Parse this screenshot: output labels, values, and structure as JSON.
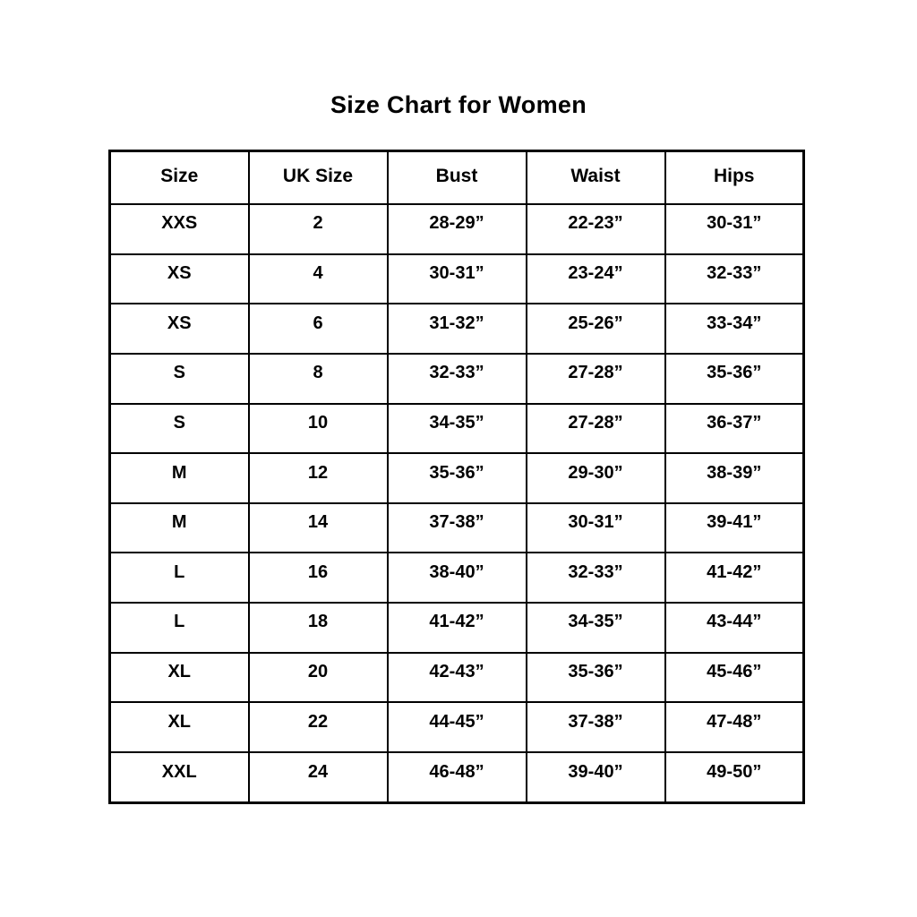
{
  "title": "Size Chart for Women",
  "colors": {
    "background": "#ffffff",
    "border": "#000000",
    "text": "#000000"
  },
  "table": {
    "headers": [
      "Size",
      "UK Size",
      "Bust",
      "Waist",
      "Hips"
    ],
    "rows": [
      [
        "XXS",
        "2",
        "28-29”",
        "22-23”",
        "30-31”"
      ],
      [
        "XS",
        "4",
        "30-31”",
        "23-24”",
        "32-33”"
      ],
      [
        "XS",
        "6",
        "31-32”",
        "25-26”",
        "33-34”"
      ],
      [
        "S",
        "8",
        "32-33”",
        "27-28”",
        "35-36”"
      ],
      [
        "S",
        "10",
        "34-35”",
        "27-28”",
        "36-37”"
      ],
      [
        "M",
        "12",
        "35-36”",
        "29-30”",
        "38-39”"
      ],
      [
        "M",
        "14",
        "37-38”",
        "30-31”",
        "39-41”"
      ],
      [
        "L",
        "16",
        "38-40”",
        "32-33”",
        "41-42”"
      ],
      [
        "L",
        "18",
        "41-42”",
        "34-35”",
        "43-44”"
      ],
      [
        "XL",
        "20",
        "42-43”",
        "35-36”",
        "45-46”"
      ],
      [
        "XL",
        "22",
        "44-45”",
        "37-38”",
        "47-48”"
      ],
      [
        "XXL",
        "24",
        "46-48”",
        "39-40”",
        "49-50”"
      ]
    ]
  },
  "chart_data": {
    "type": "table",
    "title": "Size Chart for Women",
    "columns": [
      "Size",
      "UK Size",
      "Bust",
      "Waist",
      "Hips"
    ],
    "rows": [
      {
        "size": "XXS",
        "uk_size": "2",
        "bust": "28-29”",
        "waist": "22-23”",
        "hips": "30-31”"
      },
      {
        "size": "XS",
        "uk_size": "4",
        "bust": "30-31”",
        "waist": "23-24”",
        "hips": "32-33”"
      },
      {
        "size": "XS",
        "uk_size": "6",
        "bust": "31-32”",
        "waist": "25-26”",
        "hips": "33-34”"
      },
      {
        "size": "S",
        "uk_size": "8",
        "bust": "32-33”",
        "waist": "27-28”",
        "hips": "35-36”"
      },
      {
        "size": "S",
        "uk_size": "10",
        "bust": "34-35”",
        "waist": "27-28”",
        "hips": "36-37”"
      },
      {
        "size": "M",
        "uk_size": "12",
        "bust": "35-36”",
        "waist": "29-30”",
        "hips": "38-39”"
      },
      {
        "size": "M",
        "uk_size": "14",
        "bust": "37-38”",
        "waist": "30-31”",
        "hips": "39-41”"
      },
      {
        "size": "L",
        "uk_size": "16",
        "bust": "38-40”",
        "waist": "32-33”",
        "hips": "41-42”"
      },
      {
        "size": "L",
        "uk_size": "18",
        "bust": "41-42”",
        "waist": "34-35”",
        "hips": "43-44”"
      },
      {
        "size": "XL",
        "uk_size": "20",
        "bust": "42-43”",
        "waist": "35-36”",
        "hips": "45-46”"
      },
      {
        "size": "XL",
        "uk_size": "22",
        "bust": "44-45”",
        "waist": "37-38”",
        "hips": "47-48”"
      },
      {
        "size": "XXL",
        "uk_size": "24",
        "bust": "46-48”",
        "waist": "39-40”",
        "hips": "49-50”"
      }
    ]
  }
}
